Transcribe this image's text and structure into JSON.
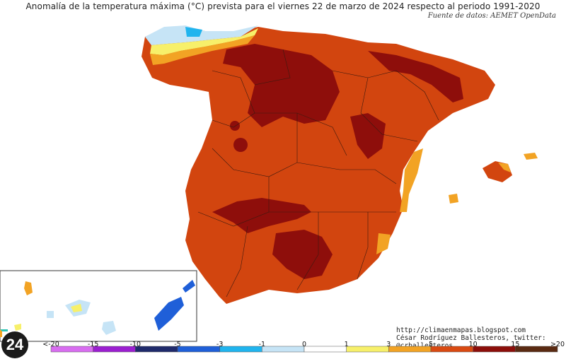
{
  "title": "Anomalía de la temperatura máxima (°C) prevista para el viernes 22 de marzo de 2024 respecto al periodo 1991-2020",
  "source": "Fuente de datos: AEMET OpenData",
  "credit_url": "http://climaenmapas.blogspot.com",
  "credit_author": "César Rodríguez Ballesteros, twitter: @crballesteros",
  "logo_text": "24",
  "legend": {
    "ticks": [
      "<-20",
      "-15",
      "-10",
      "-5",
      "-3",
      "-1",
      "0",
      "1",
      "3",
      "5",
      "10",
      "15",
      ">20"
    ],
    "colors": [
      "#d86df0",
      "#9b1fd0",
      "#1f2a6b",
      "#1f5fd8",
      "#20b4ee",
      "#c6e4f6",
      "#ffffff",
      "#f7f06a",
      "#f2a324",
      "#d94a12",
      "#8c0e0a",
      "#5a2a12"
    ]
  },
  "palette": {
    "base_warm": "#d2450f",
    "hot": "#8e0e0b",
    "mild": "#f2a324",
    "cool": "#f7f06a",
    "cold": "#c6e4f6",
    "sea": "#ffffff"
  }
}
